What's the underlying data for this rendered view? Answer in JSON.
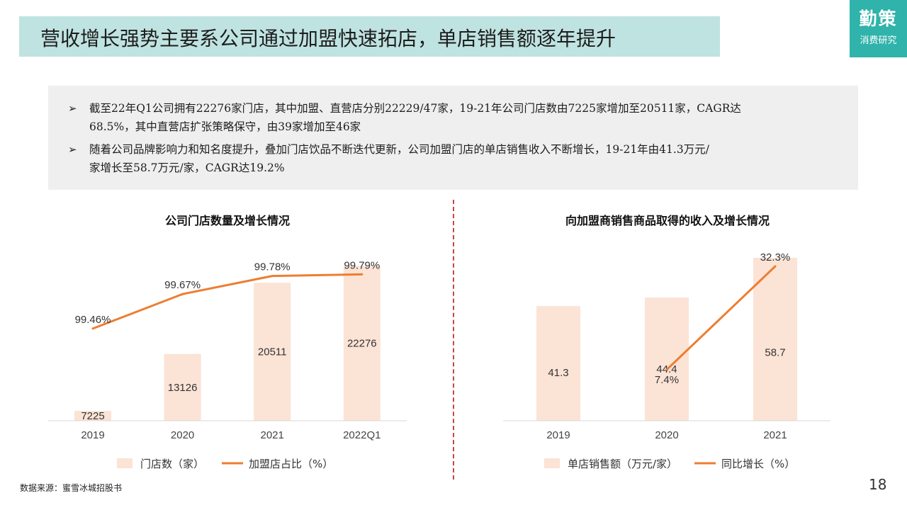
{
  "header": {
    "title": "营收增长强势主要系公司通过加盟快速拓店，单店销售额逐年提升"
  },
  "logo": {
    "main": "勤策",
    "sub": "消费研究"
  },
  "summary": {
    "marker": "➢",
    "bullets": [
      {
        "line1": "截至22年Q1公司拥有22276家门店，其中加盟、直营店分别22229/47家，19-21年公司门店数由7225家增加至20511家，CAGR达",
        "line2": "68.5%，其中直营店扩张策略保守，由39家增加至46家"
      },
      {
        "line1": "随着公司品牌影响力和知名度提升，叠加门店饮品不断迭代更新，公司加盟门店的单店销售收入不断增长，19-21年由41.3万元/",
        "line2": "家增长至58.7万元/家，CAGR达19.2%"
      }
    ]
  },
  "footer": {
    "source": "数据来源：蜜雪冰城招股书",
    "page": "18"
  },
  "colors": {
    "bar": "#fbe3d6",
    "line": "#ed7d31",
    "title_bg": "#bfe3e1",
    "logo_bg": "#2fb3aa",
    "divider": "#cc4444"
  },
  "chart_data": [
    {
      "type": "bar",
      "title": "公司门店数量及增长情况",
      "categories": [
        "2019",
        "2020",
        "2021",
        "2022Q1"
      ],
      "series": [
        {
          "name": "门店数（家）",
          "type": "bar",
          "values": [
            7225,
            13126,
            20511,
            22276
          ],
          "labels": [
            "7225",
            "13126",
            "20511",
            "22276"
          ]
        },
        {
          "name": "加盟店占比（%）",
          "type": "line",
          "values": [
            99.46,
            99.67,
            99.78,
            99.79
          ],
          "labels": [
            "99.46%",
            "99.67%",
            "99.78%",
            "99.79%"
          ]
        }
      ],
      "legend": "bottom",
      "grid": false
    },
    {
      "type": "bar",
      "title": "向加盟商销售商品取得的收入及增长情况",
      "categories": [
        "2019",
        "2020",
        "2021"
      ],
      "series": [
        {
          "name": "单店销售额（万元/家）",
          "type": "bar",
          "values": [
            41.3,
            44.4,
            58.7
          ],
          "labels": [
            "41.3",
            "44.4",
            "58.7"
          ]
        },
        {
          "name": "同比增长（%）",
          "type": "line",
          "values": [
            null,
            7.4,
            32.3
          ],
          "labels": [
            "",
            "7.4%",
            "32.3%"
          ]
        }
      ],
      "legend": "bottom",
      "grid": false
    }
  ]
}
